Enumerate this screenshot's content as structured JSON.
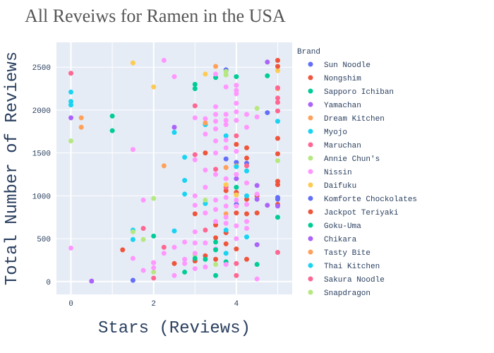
{
  "chart_data": {
    "type": "scatter",
    "title": "All Reveiws for Ramen in the USA",
    "xlabel": "Stars (Reviews)",
    "ylabel": "Total Number of Reviews",
    "xlim": [
      -0.35,
      5.35
    ],
    "ylim": [
      -150,
      2790
    ],
    "x_ticks": [
      "0",
      "2",
      "4"
    ],
    "y_ticks": [
      "0",
      "500",
      "1000",
      "1500",
      "2000",
      "2500"
    ],
    "grid": true,
    "legend_title": "Brand",
    "legend_position": "right",
    "series": [
      {
        "name": "Sun Noodle",
        "color": "#636efa",
        "points": [
          [
            1.5,
            15
          ],
          [
            3.75,
            1430
          ],
          [
            4.0,
            1390
          ],
          [
            4.25,
            1380
          ],
          [
            5.0,
            980
          ],
          [
            4.75,
            1970
          ],
          [
            3.75,
            2470
          ],
          [
            4.0,
            900
          ]
        ]
      },
      {
        "name": "Nongshim",
        "color": "#ef553b",
        "points": [
          [
            1.25,
            370
          ],
          [
            2.5,
            210
          ],
          [
            3.0,
            240
          ],
          [
            3.25,
            1500
          ],
          [
            3.25,
            300
          ],
          [
            3.5,
            260
          ],
          [
            3.5,
            510
          ],
          [
            3.5,
            660
          ],
          [
            3.75,
            1060
          ],
          [
            3.75,
            570
          ],
          [
            3.75,
            440
          ],
          [
            4.0,
            1600
          ],
          [
            4.0,
            1040
          ],
          [
            4.0,
            380
          ],
          [
            4.25,
            1560
          ],
          [
            4.25,
            1440
          ],
          [
            4.25,
            960
          ],
          [
            4.25,
            790
          ],
          [
            4.5,
            800
          ],
          [
            4.5,
            1000
          ],
          [
            5.0,
            1670
          ],
          [
            5.0,
            1490
          ],
          [
            5.0,
            1170
          ],
          [
            5.0,
            1130
          ],
          [
            5.0,
            900
          ],
          [
            5.0,
            2580
          ],
          [
            4.0,
            800
          ],
          [
            3.0,
            790
          ],
          [
            4.25,
            260
          ]
        ]
      },
      {
        "name": "Sapporo Ichiban",
        "color": "#00cc96",
        "points": [
          [
            1.0,
            1930
          ],
          [
            1.0,
            1760
          ],
          [
            2.0,
            530
          ],
          [
            3.0,
            2300
          ],
          [
            3.0,
            2250
          ],
          [
            3.5,
            460
          ],
          [
            3.5,
            70
          ],
          [
            3.75,
            230
          ],
          [
            4.0,
            2390
          ],
          [
            4.0,
            1100
          ],
          [
            4.5,
            200
          ],
          [
            4.75,
            2400
          ],
          [
            5.0,
            750
          ],
          [
            3.5,
            2380
          ],
          [
            3.25,
            260
          ],
          [
            2.75,
            110
          ]
        ]
      },
      {
        "name": "Yamachan",
        "color": "#ab63fa",
        "points": [
          [
            0.0,
            1910
          ],
          [
            0.5,
            5
          ],
          [
            2.5,
            1800
          ],
          [
            4.5,
            430
          ],
          [
            4.75,
            2560
          ],
          [
            4.75,
            890
          ],
          [
            5.0,
            880
          ],
          [
            4.0,
            1200
          ],
          [
            4.5,
            1120
          ]
        ]
      },
      {
        "name": "Dream Kitchen",
        "color": "#ffa15a",
        "points": [
          [
            0.25,
            1910
          ],
          [
            0.25,
            1800
          ],
          [
            2.25,
            1350
          ],
          [
            3.5,
            2510
          ],
          [
            3.75,
            790
          ],
          [
            4.0,
            1350
          ],
          [
            5.0,
            2250
          ]
        ]
      },
      {
        "name": "Myojo",
        "color": "#19d3f3",
        "points": [
          [
            0.0,
            2210
          ],
          [
            0.0,
            2100
          ],
          [
            0.0,
            2060
          ],
          [
            1.5,
            600
          ],
          [
            1.5,
            490
          ],
          [
            2.5,
            1740
          ],
          [
            2.5,
            590
          ],
          [
            2.75,
            1180
          ],
          [
            2.75,
            1020
          ],
          [
            3.25,
            910
          ],
          [
            3.75,
            600
          ],
          [
            4.0,
            1340
          ],
          [
            4.25,
            1290
          ],
          [
            4.25,
            520
          ],
          [
            5.0,
            1870
          ],
          [
            3.25,
            1830
          ],
          [
            3.75,
            1700
          ]
        ]
      },
      {
        "name": "Maruchan",
        "color": "#ff6692",
        "points": [
          [
            0.0,
            2430
          ],
          [
            1.75,
            620
          ],
          [
            2.0,
            220
          ],
          [
            2.0,
            40
          ],
          [
            2.25,
            400
          ],
          [
            3.0,
            2050
          ],
          [
            3.5,
            1310
          ],
          [
            3.75,
            1100
          ],
          [
            4.0,
            1700
          ],
          [
            4.0,
            70
          ],
          [
            4.25,
            1350
          ],
          [
            5.0,
            2260
          ],
          [
            5.0,
            2140
          ],
          [
            5.0,
            2090
          ],
          [
            5.0,
            1990
          ],
          [
            5.0,
            340
          ],
          [
            3.25,
            600
          ],
          [
            4.0,
            210
          ]
        ]
      },
      {
        "name": "Annie Chun's",
        "color": "#b6e880",
        "points": [
          [
            0.0,
            1640
          ],
          [
            2.0,
            970
          ],
          [
            2.0,
            110
          ],
          [
            3.25,
            950
          ],
          [
            3.75,
            2450
          ],
          [
            5.0,
            1410
          ],
          [
            4.5,
            2020
          ],
          [
            3.0,
            310
          ],
          [
            3.5,
            200
          ]
        ]
      },
      {
        "name": "Nissin",
        "color": "#ff97ff",
        "points": [
          [
            0.0,
            390
          ],
          [
            1.5,
            1540
          ],
          [
            1.5,
            270
          ],
          [
            1.75,
            950
          ],
          [
            1.75,
            130
          ],
          [
            2.0,
            220
          ],
          [
            2.0,
            160
          ],
          [
            2.25,
            2580
          ],
          [
            2.25,
            330
          ],
          [
            2.5,
            2390
          ],
          [
            2.5,
            400
          ],
          [
            2.5,
            70
          ],
          [
            2.75,
            460
          ],
          [
            2.75,
            210
          ],
          [
            3.0,
            1910
          ],
          [
            3.0,
            1420
          ],
          [
            3.0,
            1000
          ],
          [
            3.0,
            890
          ],
          [
            3.0,
            580
          ],
          [
            3.0,
            450
          ],
          [
            3.0,
            330
          ],
          [
            3.25,
            1900
          ],
          [
            3.25,
            1720
          ],
          [
            3.25,
            1300
          ],
          [
            3.25,
            1100
          ],
          [
            3.25,
            800
          ],
          [
            3.25,
            450
          ],
          [
            3.25,
            170
          ],
          [
            3.5,
            2420
          ],
          [
            3.5,
            2040
          ],
          [
            3.5,
            1950
          ],
          [
            3.5,
            1870
          ],
          [
            3.5,
            1780
          ],
          [
            3.5,
            1640
          ],
          [
            3.5,
            1500
          ],
          [
            3.5,
            1250
          ],
          [
            3.5,
            950
          ],
          [
            3.5,
            840
          ],
          [
            3.5,
            700
          ],
          [
            3.5,
            380
          ],
          [
            3.75,
            2270
          ],
          [
            3.75,
            1950
          ],
          [
            3.75,
            1880
          ],
          [
            3.75,
            1830
          ],
          [
            3.75,
            1650
          ],
          [
            3.75,
            1560
          ],
          [
            3.75,
            1330
          ],
          [
            3.75,
            1200
          ],
          [
            3.75,
            980
          ],
          [
            3.75,
            880
          ],
          [
            3.75,
            750
          ],
          [
            3.75,
            680
          ],
          [
            3.75,
            200
          ],
          [
            4.0,
            2290
          ],
          [
            4.0,
            2230
          ],
          [
            4.0,
            2190
          ],
          [
            4.0,
            2080
          ],
          [
            4.0,
            1980
          ],
          [
            4.0,
            1880
          ],
          [
            4.0,
            1520
          ],
          [
            4.0,
            1250
          ],
          [
            4.0,
            950
          ],
          [
            4.0,
            880
          ],
          [
            4.0,
            650
          ],
          [
            4.0,
            500
          ],
          [
            4.25,
            1950
          ],
          [
            4.25,
            1800
          ],
          [
            4.25,
            1150
          ],
          [
            4.25,
            900
          ],
          [
            4.25,
            700
          ],
          [
            4.25,
            620
          ],
          [
            4.5,
            1920
          ],
          [
            4.5,
            1020
          ],
          [
            4.5,
            30
          ],
          [
            3.0,
            150
          ],
          [
            2.75,
            260
          ]
        ]
      },
      {
        "name": "Daifuku",
        "color": "#fecb52",
        "points": [
          [
            1.5,
            2550
          ],
          [
            2.0,
            2270
          ],
          [
            3.25,
            2420
          ],
          [
            4.0,
            1010
          ],
          [
            5.0,
            2460
          ],
          [
            3.75,
            1130
          ]
        ]
      },
      {
        "name": "Komforte Chockolates",
        "color": "#636efa",
        "points": [
          [
            5.0,
            960
          ]
        ]
      },
      {
        "name": "Jackpot Teriyaki",
        "color": "#ef553b",
        "points": [
          [
            5.0,
            2510
          ]
        ]
      },
      {
        "name": "Goku-Uma",
        "color": "#00cc96",
        "points": [
          [
            3.0,
            270
          ],
          [
            3.5,
            370
          ]
        ]
      },
      {
        "name": "Chikara",
        "color": "#ab63fa",
        "points": [
          [
            4.5,
            960
          ]
        ]
      },
      {
        "name": "Tasty Bite",
        "color": "#ffa15a",
        "points": [
          [
            3.75,
            1330
          ],
          [
            3.25,
            1850
          ]
        ]
      },
      {
        "name": "Thai Kitchen",
        "color": "#19d3f3",
        "points": [
          [
            2.75,
            1450
          ],
          [
            3.75,
            330
          ],
          [
            4.25,
            1000
          ]
        ]
      },
      {
        "name": "Sakura Noodle",
        "color": "#ff6692",
        "points": [
          [
            3.0,
            1480
          ]
        ]
      },
      {
        "name": "Snapdragon",
        "color": "#b6e880",
        "points": [
          [
            1.5,
            580
          ],
          [
            1.75,
            490
          ],
          [
            3.75,
            2410
          ]
        ]
      }
    ]
  }
}
